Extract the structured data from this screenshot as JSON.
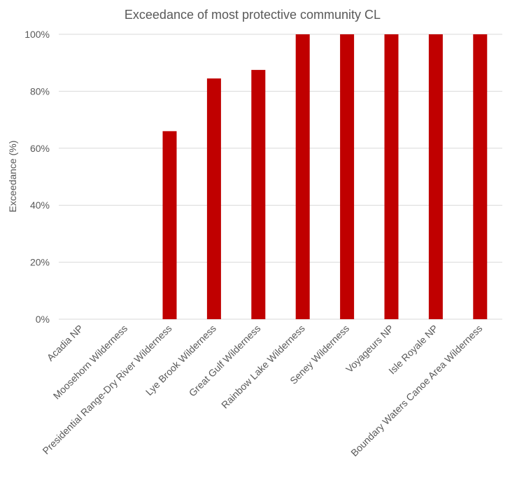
{
  "chart_data": {
    "type": "bar",
    "title": "Exceedance of most protective community CL",
    "ylabel": "Exceedance (%)",
    "xlabel": "",
    "ylim": [
      0,
      100
    ],
    "yticks": [
      0,
      20,
      40,
      60,
      80,
      100
    ],
    "ytick_labels": [
      "0%",
      "20%",
      "40%",
      "60%",
      "80%",
      "100%"
    ],
    "categories": [
      "Acadia NP",
      "Moosehorn Wilderness",
      "Presidential Range-Dry River Wilderness",
      "Lye Brook Wilderness",
      "Great Gulf Wilderness",
      "Rainbow Lake Wilderness",
      "Seney Wilderness",
      "Voyageurs NP",
      "Isle Royale NP",
      "Boundary Waters Canoe Area Wilderness"
    ],
    "values": [
      0,
      0,
      66,
      84.5,
      87.5,
      100,
      100,
      100,
      100,
      100
    ],
    "bar_color": "#c00000",
    "grid": true,
    "legend": "none"
  }
}
